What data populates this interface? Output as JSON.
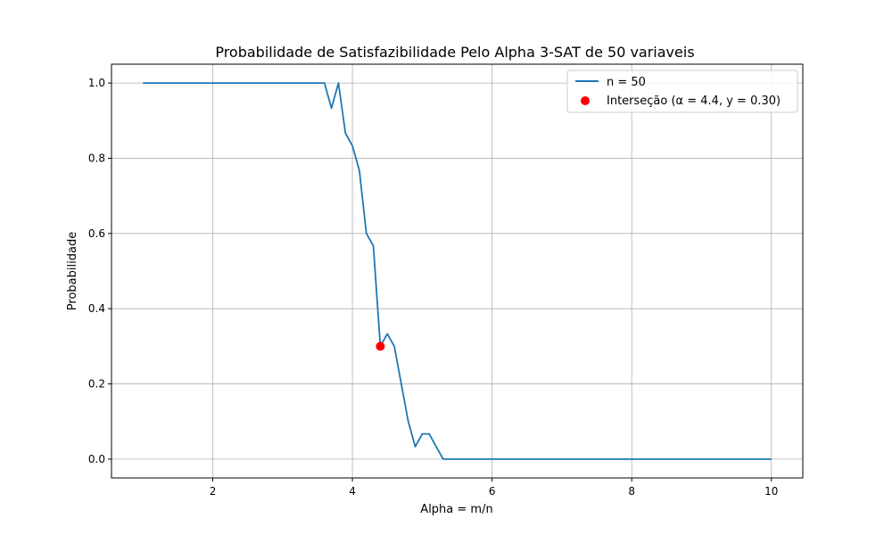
{
  "chart_data": {
    "type": "line",
    "title": "Probabilidade de Satisfazibilidade Pelo Alpha 3-SAT de 50 variaveis",
    "xlabel": "Alpha = m/n",
    "ylabel": "Probabilidade",
    "xlim": [
      0.55,
      10.45
    ],
    "ylim": [
      -0.05,
      1.05
    ],
    "xticks": [
      2,
      4,
      6,
      8,
      10
    ],
    "yticks": [
      0.0,
      0.2,
      0.4,
      0.6,
      0.8,
      1.0
    ],
    "xtick_labels": [
      "2",
      "4",
      "6",
      "8",
      "10"
    ],
    "ytick_labels": [
      "0.0",
      "0.2",
      "0.4",
      "0.6",
      "0.8",
      "1.0"
    ],
    "grid": true,
    "legend_position": "top-right",
    "series": [
      {
        "name": "n = 50",
        "color": "#1f77b4",
        "x": [
          1.0,
          1.5,
          2.0,
          2.5,
          3.0,
          3.5,
          3.6,
          3.7,
          3.8,
          3.9,
          4.0,
          4.1,
          4.2,
          4.3,
          4.4,
          4.5,
          4.6,
          4.7,
          4.8,
          4.9,
          5.0,
          5.1,
          5.2,
          5.3,
          5.5,
          6.0,
          7.0,
          8.0,
          9.0,
          10.0
        ],
        "y": [
          1.0,
          1.0,
          1.0,
          1.0,
          1.0,
          1.0,
          1.0,
          0.933,
          1.0,
          0.867,
          0.833,
          0.767,
          0.6,
          0.567,
          0.3,
          0.333,
          0.3,
          0.2,
          0.1,
          0.033,
          0.067,
          0.067,
          0.033,
          0.0,
          0.0,
          0.0,
          0.0,
          0.0,
          0.0,
          0.0
        ]
      }
    ],
    "points": [
      {
        "name": "Interseção (α = 4.4, y = 0.30)",
        "color": "#ff0000",
        "x": 4.4,
        "y": 0.3
      }
    ]
  }
}
